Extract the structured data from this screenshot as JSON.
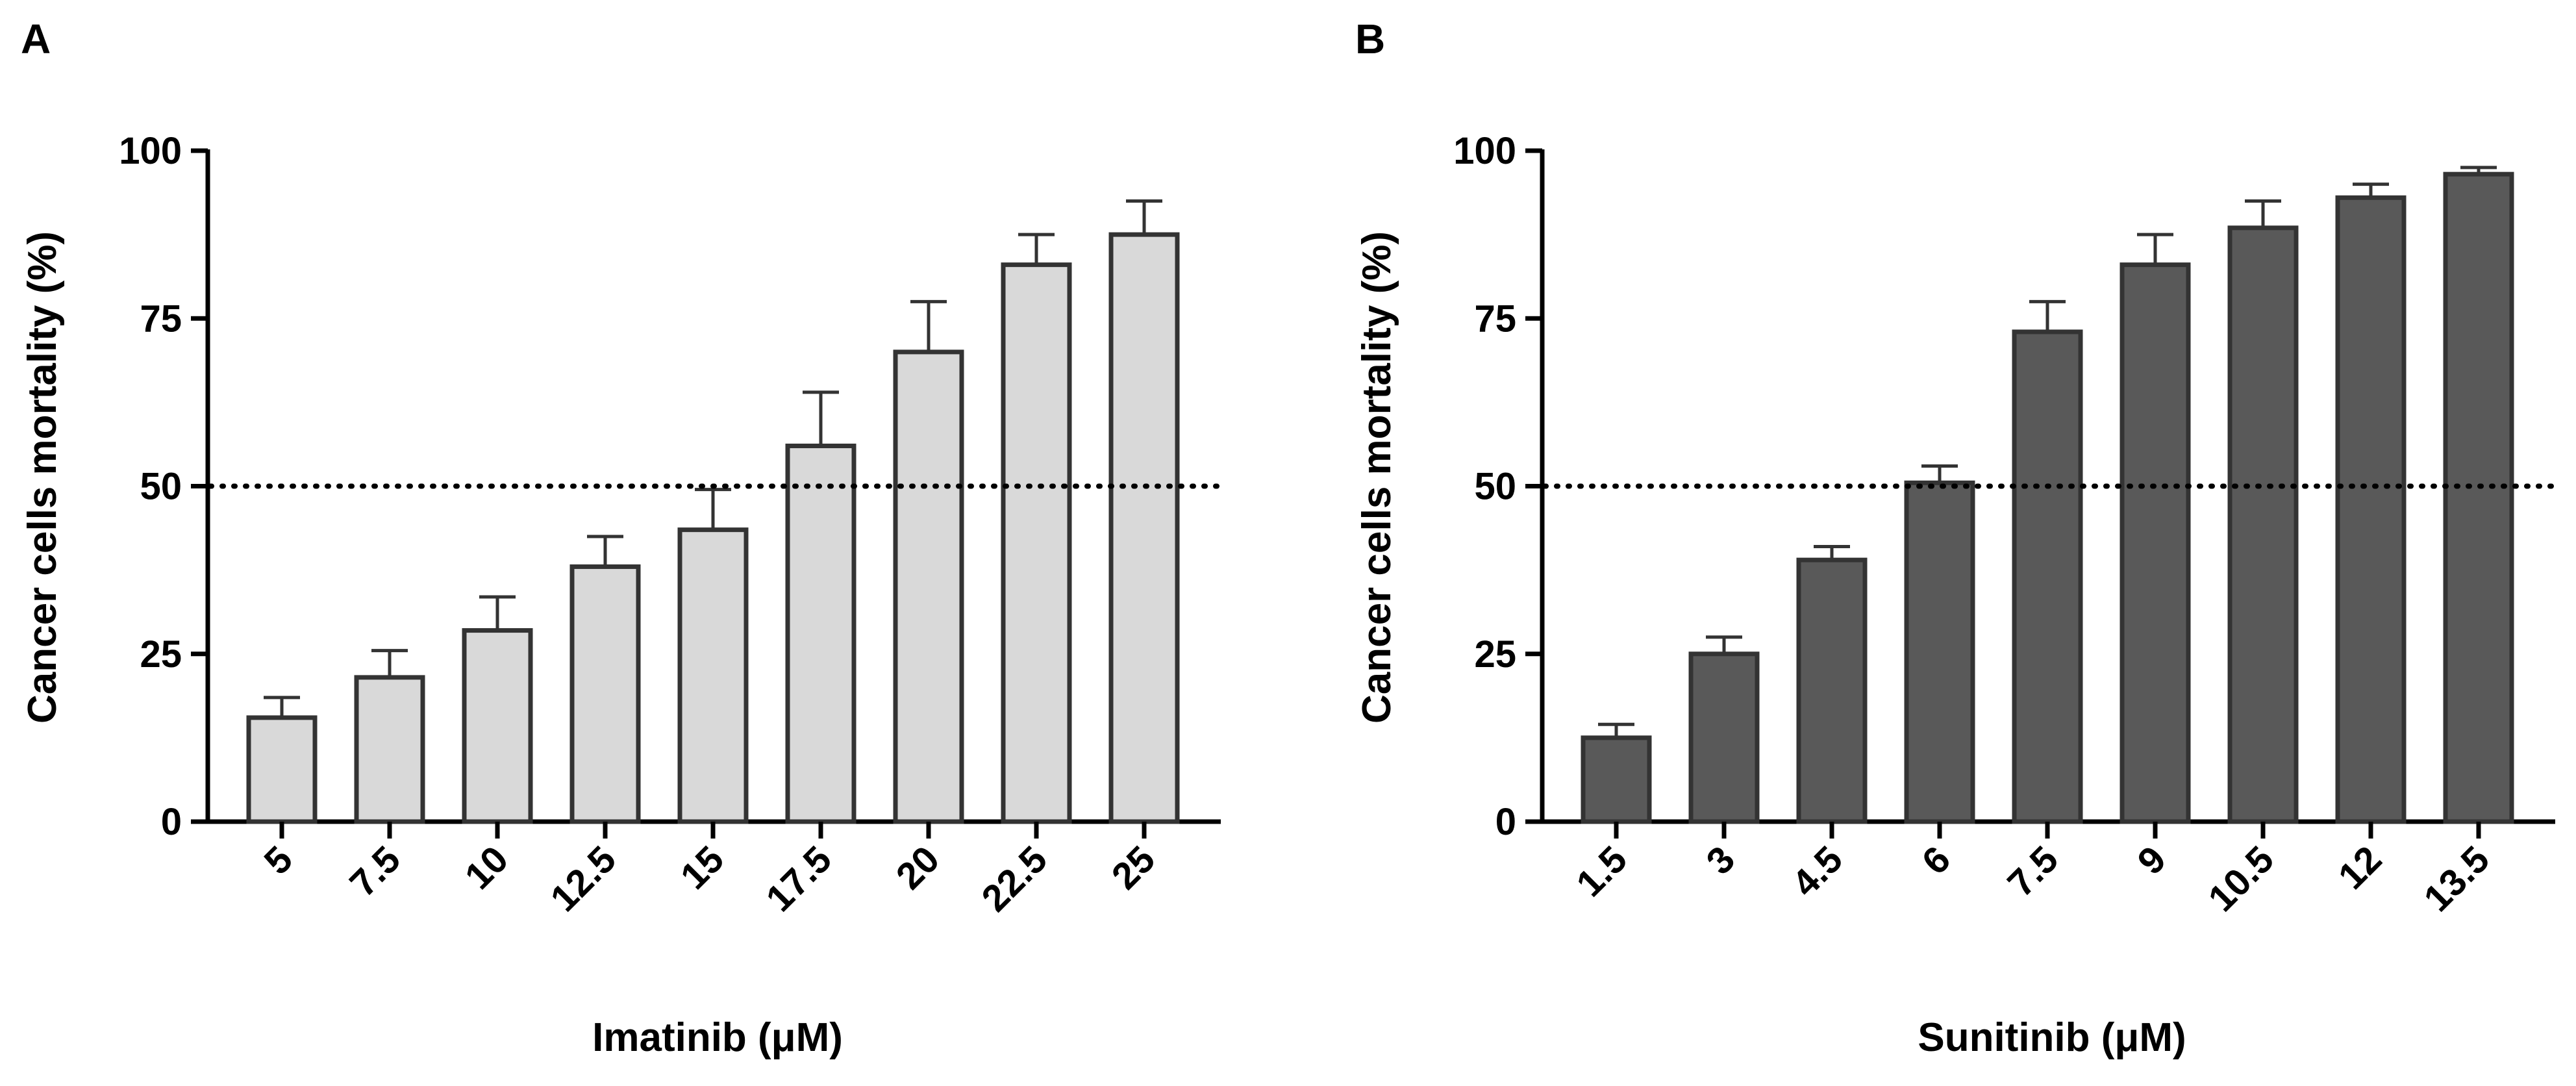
{
  "chart_data": [
    {
      "panel_label": "A",
      "type": "bar",
      "categories": [
        "5",
        "7.5",
        "10",
        "12.5",
        "15",
        "17.5",
        "20",
        "22.5",
        "25"
      ],
      "values": [
        15.5,
        21.5,
        28.5,
        38,
        43.5,
        56,
        70,
        83,
        87.5
      ],
      "errors": [
        3,
        4,
        5,
        4.5,
        6,
        8,
        7.5,
        4.5,
        5
      ],
      "xlabel": "Imatinib (μM)",
      "ylabel": "Cancer cells mortality (%)",
      "ylim": [
        0,
        100
      ],
      "yticks": [
        "0",
        "25",
        "50",
        "75",
        "100"
      ],
      "reference_line": 50,
      "bar_color": "#d9d9d9"
    },
    {
      "panel_label": "B",
      "type": "bar",
      "categories": [
        "1.5",
        "3",
        "4.5",
        "6",
        "7.5",
        "9",
        "10.5",
        "12",
        "13.5"
      ],
      "values": [
        12.5,
        25,
        39,
        50.5,
        73,
        83,
        88.5,
        93,
        96.5
      ],
      "errors": [
        2,
        2.5,
        2,
        2.5,
        4.5,
        4.5,
        4,
        2,
        1
      ],
      "xlabel": "Sunitinib (μM)",
      "ylabel": "Cancer cells mortality (%)",
      "ylim": [
        0,
        100
      ],
      "yticks": [
        "0",
        "25",
        "50",
        "75",
        "100"
      ],
      "reference_line": 50,
      "bar_color": "#595959"
    }
  ],
  "colors": {
    "axis": "#000000",
    "bar_edge": "#333333",
    "reference_line": "#000000"
  }
}
